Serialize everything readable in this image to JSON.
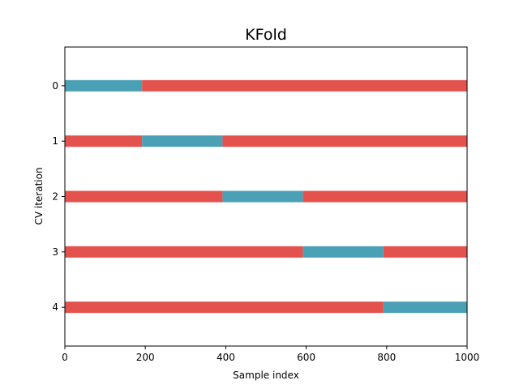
{
  "chart_data": {
    "type": "bar",
    "title": "KFold",
    "xlabel": "Sample index",
    "ylabel": "CV iteration",
    "xlim": [
      0,
      1000
    ],
    "x_ticks": [
      0,
      200,
      400,
      600,
      800,
      1000
    ],
    "x_tick_labels": [
      "0",
      "200",
      "400",
      "600",
      "800",
      "1000"
    ],
    "y_ticks": [
      0,
      1,
      2,
      3,
      4
    ],
    "y_tick_labels": [
      "0",
      "1",
      "2",
      "3",
      "4"
    ],
    "grid": false,
    "colors": {
      "train": "#e4524d",
      "test": "#4aa0b5"
    },
    "series": [
      {
        "iteration": 0,
        "segments": [
          {
            "set": "test",
            "start": 0,
            "end": 192
          },
          {
            "set": "train",
            "start": 192,
            "end": 1000
          }
        ]
      },
      {
        "iteration": 1,
        "segments": [
          {
            "set": "train",
            "start": 0,
            "end": 192
          },
          {
            "set": "test",
            "start": 192,
            "end": 392
          },
          {
            "set": "train",
            "start": 392,
            "end": 1000
          }
        ]
      },
      {
        "iteration": 2,
        "segments": [
          {
            "set": "train",
            "start": 0,
            "end": 392
          },
          {
            "set": "test",
            "start": 392,
            "end": 592
          },
          {
            "set": "train",
            "start": 592,
            "end": 1000
          }
        ]
      },
      {
        "iteration": 3,
        "segments": [
          {
            "set": "train",
            "start": 0,
            "end": 592
          },
          {
            "set": "test",
            "start": 592,
            "end": 792
          },
          {
            "set": "train",
            "start": 792,
            "end": 1000
          }
        ]
      },
      {
        "iteration": 4,
        "segments": [
          {
            "set": "train",
            "start": 0,
            "end": 792
          },
          {
            "set": "test",
            "start": 792,
            "end": 1000
          }
        ]
      }
    ]
  }
}
